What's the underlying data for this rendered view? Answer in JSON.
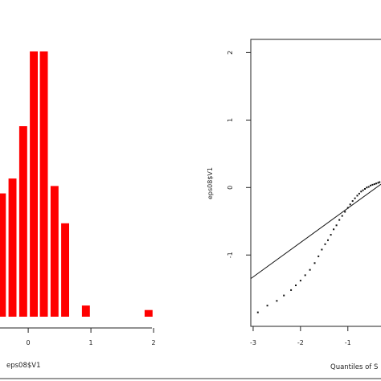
{
  "chart_data": [
    {
      "type": "bar",
      "xlabel": "eps08$V1",
      "x_ticks": [
        "0",
        "1",
        "2"
      ],
      "xlim": [
        -0.45,
        2.05
      ],
      "ylim": [
        0,
        37
      ],
      "bin_width": 0.166,
      "bins": [
        {
          "center": -0.42,
          "count": 18
        },
        {
          "center": -0.25,
          "count": 20
        },
        {
          "center": -0.08,
          "count": 27
        },
        {
          "center": 0.09,
          "count": 37
        },
        {
          "center": 0.25,
          "count": 37
        },
        {
          "center": 0.42,
          "count": 19
        },
        {
          "center": 0.59,
          "count": 14
        },
        {
          "center": 0.92,
          "count": 3
        },
        {
          "center": 1.09,
          "count": 0.4
        },
        {
          "center": 1.26,
          "count": 0.4
        },
        {
          "center": 1.92,
          "count": 2.4
        }
      ],
      "color": "#ff0000"
    },
    {
      "type": "scatter",
      "subtype": "qq-plot",
      "xlabel": "Quantiles of S",
      "ylabel": "eps08$V1",
      "x_ticks": [
        "-3",
        "-2",
        "-1"
      ],
      "y_ticks": [
        "2",
        "1",
        "0",
        "-1"
      ],
      "xlim": [
        -3.05,
        -0.3
      ],
      "ylim": [
        -1.95,
        2.1
      ],
      "reference_line": {
        "x": [
          -3.05,
          -0.3
        ],
        "y": [
          -1.35,
          0.05
        ]
      },
      "points": [
        [
          -2.9,
          -1.85
        ],
        [
          -2.7,
          -1.75
        ],
        [
          -2.5,
          -1.68
        ],
        [
          -2.35,
          -1.6
        ],
        [
          -2.2,
          -1.52
        ],
        [
          -2.1,
          -1.45
        ],
        [
          -2.0,
          -1.38
        ],
        [
          -1.9,
          -1.3
        ],
        [
          -1.8,
          -1.22
        ],
        [
          -1.7,
          -1.12
        ],
        [
          -1.62,
          -1.02
        ],
        [
          -1.55,
          -0.92
        ],
        [
          -1.48,
          -0.84
        ],
        [
          -1.42,
          -0.78
        ],
        [
          -1.36,
          -0.7
        ],
        [
          -1.3,
          -0.62
        ],
        [
          -1.24,
          -0.56
        ],
        [
          -1.18,
          -0.48
        ],
        [
          -1.12,
          -0.42
        ],
        [
          -1.06,
          -0.36
        ],
        [
          -1.0,
          -0.3
        ],
        [
          -0.95,
          -0.25
        ],
        [
          -0.9,
          -0.2
        ],
        [
          -0.85,
          -0.16
        ],
        [
          -0.8,
          -0.12
        ],
        [
          -0.76,
          -0.09
        ],
        [
          -0.72,
          -0.06
        ],
        [
          -0.68,
          -0.04
        ],
        [
          -0.64,
          -0.02
        ],
        [
          -0.6,
          0.0
        ],
        [
          -0.56,
          0.01
        ],
        [
          -0.52,
          0.03
        ],
        [
          -0.48,
          0.04
        ],
        [
          -0.44,
          0.05
        ],
        [
          -0.4,
          0.06
        ],
        [
          -0.36,
          0.07
        ],
        [
          -0.33,
          0.08
        ]
      ]
    }
  ]
}
